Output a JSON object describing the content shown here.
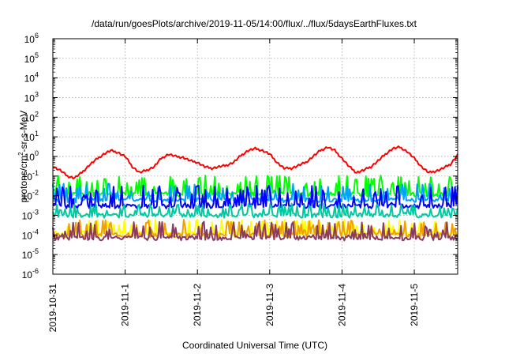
{
  "chart_data": {
    "type": "line",
    "title": "/data/run/goesPlots/archive/2019-11-05/14:00/flux/../flux/5daysEarthFluxes.txt",
    "xlabel": "Coordinated Universal Time (UTC)",
    "ylabel": {
      "pre": "protons/cm",
      "sup": "2",
      "post": "-sr-s-MeV"
    },
    "yscale": "log",
    "ylim": [
      1e-06,
      1000000.0
    ],
    "y_ticks": [
      {
        "exp": "-6",
        "value": 1e-06
      },
      {
        "exp": "-5",
        "value": 1e-05
      },
      {
        "exp": "-4",
        "value": 0.0001
      },
      {
        "exp": "-3",
        "value": 0.001
      },
      {
        "exp": "-2",
        "value": 0.01
      },
      {
        "exp": "-1",
        "value": 0.1
      },
      {
        "exp": "0",
        "value": 1
      },
      {
        "exp": "1",
        "value": 10
      },
      {
        "exp": "2",
        "value": 100
      },
      {
        "exp": "3",
        "value": 1000
      },
      {
        "exp": "4",
        "value": 10000
      },
      {
        "exp": "5",
        "value": 100000
      },
      {
        "exp": "6",
        "value": 1000000
      }
    ],
    "y_tick_base": "10",
    "x_ticks": [
      {
        "label": "2019-10-31",
        "day": 0
      },
      {
        "label": "2019-11-1",
        "day": 1
      },
      {
        "label": "2019-11-2",
        "day": 2
      },
      {
        "label": "2019-11-3",
        "day": 3
      },
      {
        "label": "2019-11-4",
        "day": 4
      },
      {
        "label": "2019-11-5",
        "day": 5
      }
    ],
    "xlim_days": [
      0,
      5.6
    ],
    "grid": true,
    "series": [
      {
        "color": "#ff0000",
        "x": [
          0,
          0.1,
          0.2,
          0.3,
          0.4,
          0.5,
          0.6,
          0.7,
          0.8,
          0.9,
          1.0,
          1.1,
          1.2,
          1.3,
          1.4,
          1.5,
          1.6,
          1.7,
          1.8,
          1.9,
          2.0,
          2.1,
          2.2,
          2.3,
          2.4,
          2.5,
          2.6,
          2.7,
          2.8,
          2.9,
          3.0,
          3.1,
          3.2,
          3.3,
          3.4,
          3.5,
          3.6,
          3.7,
          3.8,
          3.9,
          4.0,
          4.1,
          4.2,
          4.3,
          4.4,
          4.5,
          4.6,
          4.7,
          4.8,
          4.9,
          5.0,
          5.1,
          5.2,
          5.3,
          5.4,
          5.5,
          5.6
        ],
        "y": [
          0.3,
          0.2,
          0.1,
          0.08,
          0.15,
          0.35,
          0.7,
          1.3,
          2.0,
          1.6,
          1.0,
          0.3,
          0.15,
          0.2,
          0.3,
          0.8,
          1.3,
          1.0,
          0.9,
          0.6,
          0.5,
          0.3,
          0.25,
          0.3,
          0.35,
          0.5,
          1.1,
          2.0,
          2.5,
          2.0,
          1.3,
          0.5,
          0.25,
          0.25,
          0.35,
          0.5,
          1.0,
          2.0,
          3.0,
          2.0,
          0.8,
          0.3,
          0.15,
          0.2,
          0.3,
          0.6,
          1.3,
          2.5,
          3.0,
          1.8,
          0.8,
          0.3,
          0.15,
          0.18,
          0.25,
          0.4,
          1.2
        ]
      },
      {
        "color": "#00ff00",
        "base": 0.012,
        "spike_mult": 8,
        "seed": 11
      },
      {
        "color": "#00a0ff",
        "base": 0.006,
        "spike_mult": 6,
        "seed": 23
      },
      {
        "color": "#0000ff",
        "base": 0.003,
        "spike_mult": 10,
        "seed": 37
      },
      {
        "color": "#00c8a0",
        "base": 0.001,
        "spike_mult": 3,
        "seed": 41
      },
      {
        "color": "#ffff00",
        "base": 0.00012,
        "spike_mult": 4,
        "seed": 53
      },
      {
        "color": "#f0a000",
        "base": 0.0001,
        "spike_mult": 5,
        "seed": 67
      },
      {
        "color": "#8b3a62",
        "base": 7e-05,
        "spike_mult": 6,
        "seed": 79
      }
    ]
  }
}
